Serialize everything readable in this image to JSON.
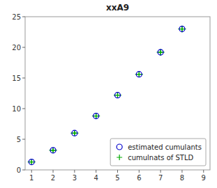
{
  "chart_data": {
    "type": "scatter",
    "title": "xxA9",
    "x": [
      1,
      2,
      3,
      4,
      5,
      6,
      7,
      8
    ],
    "series": [
      {
        "name": "estimated cumulants",
        "color": "#0000cc",
        "marker": "circle",
        "values": [
          1.3,
          3.2,
          6.0,
          8.8,
          12.2,
          15.6,
          19.2,
          23.0
        ]
      },
      {
        "name": "cumulnats of STLD",
        "color": "#00aa00",
        "marker": "plus",
        "values": [
          1.3,
          3.2,
          6.0,
          8.8,
          12.2,
          15.6,
          19.2,
          23.0
        ],
        "xerr": [
          0.18,
          0.18,
          0.18,
          0.18,
          0.18,
          0.18,
          0.18,
          0.18
        ],
        "yerr": [
          0.3,
          0.35,
          0.35,
          0.4,
          0.45,
          0.5,
          0.55,
          0.55
        ]
      }
    ],
    "xlim": [
      0.7,
      9.3
    ],
    "xticks": [
      1,
      2,
      3,
      4,
      5,
      6,
      7,
      8,
      9
    ],
    "ylim": [
      0,
      25
    ],
    "yticks": [
      0,
      5,
      10,
      15,
      20,
      25
    ],
    "legend": "lower right"
  }
}
